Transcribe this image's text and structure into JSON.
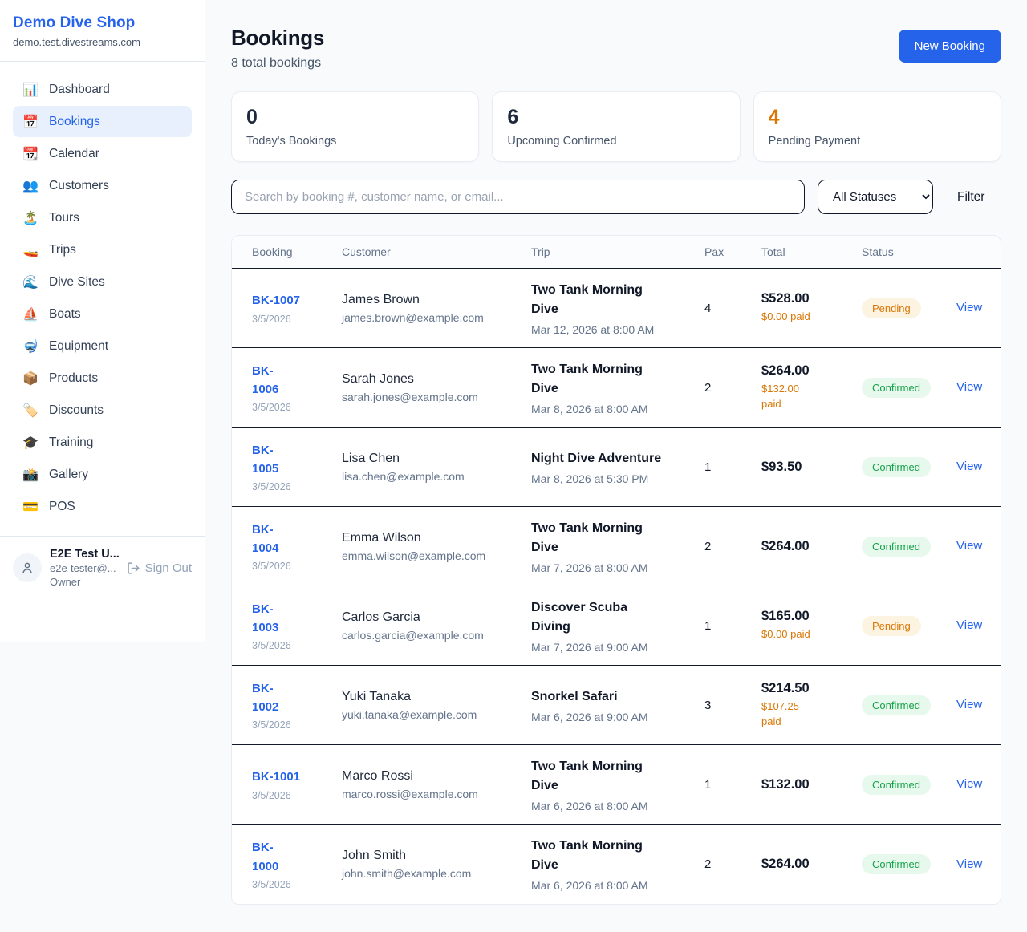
{
  "sidebar": {
    "shop_name": "Demo Dive Shop",
    "shop_domain": "demo.test.divestreams.com",
    "items": [
      {
        "label": "Dashboard",
        "icon": "bar-chart-icon",
        "emoji": "📊",
        "active": false
      },
      {
        "label": "Bookings",
        "icon": "calendar-date-icon",
        "emoji": "📅",
        "active": true
      },
      {
        "label": "Calendar",
        "icon": "tear-off-calendar-icon",
        "emoji": "📆",
        "active": false
      },
      {
        "label": "Customers",
        "icon": "people-icon",
        "emoji": "👥",
        "active": false
      },
      {
        "label": "Tours",
        "icon": "desert-island-icon",
        "emoji": "🏝️",
        "active": false
      },
      {
        "label": "Trips",
        "icon": "speedboat-icon",
        "emoji": "🚤",
        "active": false
      },
      {
        "label": "Dive Sites",
        "icon": "wave-icon",
        "emoji": "🌊",
        "active": false
      },
      {
        "label": "Boats",
        "icon": "sailboat-icon",
        "emoji": "⛵",
        "active": false
      },
      {
        "label": "Equipment",
        "icon": "diving-mask-icon",
        "emoji": "🤿",
        "active": false
      },
      {
        "label": "Products",
        "icon": "package-icon",
        "emoji": "📦",
        "active": false
      },
      {
        "label": "Discounts",
        "icon": "label-tag-icon",
        "emoji": "🏷️",
        "active": false
      },
      {
        "label": "Training",
        "icon": "graduation-cap-icon",
        "emoji": "🎓",
        "active": false
      },
      {
        "label": "Gallery",
        "icon": "camera-flash-icon",
        "emoji": "📸",
        "active": false
      },
      {
        "label": "POS",
        "icon": "credit-card-icon",
        "emoji": "💳",
        "active": false
      }
    ],
    "user": {
      "name": "E2E Test U...",
      "email": "e2e-tester@...",
      "role": "Owner",
      "sign_out_label": "Sign Out"
    }
  },
  "header": {
    "title": "Bookings",
    "subtitle": "8 total bookings",
    "new_booking_label": "New Booking"
  },
  "stats": [
    {
      "value": "0",
      "label": "Today's Bookings",
      "value_color": "#1e293b"
    },
    {
      "value": "6",
      "label": "Upcoming Confirmed",
      "value_color": "#1e293b"
    },
    {
      "value": "4",
      "label": "Pending Payment",
      "value_color": "#d97706"
    }
  ],
  "filters": {
    "search_placeholder": "Search by booking #, customer name, or email...",
    "status_selected": "All Statuses",
    "filter_label": "Filter"
  },
  "table": {
    "columns": [
      "Booking",
      "Customer",
      "Trip",
      "Pax",
      "Total",
      "Status",
      ""
    ],
    "rows": [
      {
        "booking_id": "BK-1007",
        "booking_wrap": false,
        "booking_date": "3/5/2026",
        "customer_name": "James Brown",
        "customer_email": "james.brown@example.com",
        "trip_name": "Two Tank Morning Dive",
        "trip_datetime": "Mar 12, 2026 at 8:00 AM",
        "pax": "4",
        "total": "$528.00",
        "paid": "$0.00 paid",
        "status": "Pending",
        "view_label": "View"
      },
      {
        "booking_id": "BK-1006",
        "booking_wrap": true,
        "booking_date": "3/5/2026",
        "customer_name": "Sarah Jones",
        "customer_email": "sarah.jones@example.com",
        "trip_name": "Two Tank Morning Dive",
        "trip_datetime": "Mar 8, 2026 at 8:00 AM",
        "pax": "2",
        "total": "$264.00",
        "paid": "$132.00 paid",
        "status": "Confirmed",
        "view_label": "View"
      },
      {
        "booking_id": "BK-1005",
        "booking_wrap": true,
        "booking_date": "3/5/2026",
        "customer_name": "Lisa Chen",
        "customer_email": "lisa.chen@example.com",
        "trip_name": "Night Dive Adventure",
        "trip_datetime": "Mar 8, 2026 at 5:30 PM",
        "pax": "1",
        "total": "$93.50",
        "paid": null,
        "status": "Confirmed",
        "view_label": "View"
      },
      {
        "booking_id": "BK-1004",
        "booking_wrap": true,
        "booking_date": "3/5/2026",
        "customer_name": "Emma Wilson",
        "customer_email": "emma.wilson@example.com",
        "trip_name": "Two Tank Morning Dive",
        "trip_datetime": "Mar 7, 2026 at 8:00 AM",
        "pax": "2",
        "total": "$264.00",
        "paid": null,
        "status": "Confirmed",
        "view_label": "View"
      },
      {
        "booking_id": "BK-1003",
        "booking_wrap": true,
        "booking_date": "3/5/2026",
        "customer_name": "Carlos Garcia",
        "customer_email": "carlos.garcia@example.com",
        "trip_name": "Discover Scuba Diving",
        "trip_datetime": "Mar 7, 2026 at 9:00 AM",
        "pax": "1",
        "total": "$165.00",
        "paid": "$0.00 paid",
        "status": "Pending",
        "view_label": "View"
      },
      {
        "booking_id": "BK-1002",
        "booking_wrap": true,
        "booking_date": "3/5/2026",
        "customer_name": "Yuki Tanaka",
        "customer_email": "yuki.tanaka@example.com",
        "trip_name": "Snorkel Safari",
        "trip_datetime": "Mar 6, 2026 at 9:00 AM",
        "pax": "3",
        "total": "$214.50",
        "paid": "$107.25 paid",
        "status": "Confirmed",
        "view_label": "View"
      },
      {
        "booking_id": "BK-1001",
        "booking_wrap": false,
        "booking_date": "3/5/2026",
        "customer_name": "Marco Rossi",
        "customer_email": "marco.rossi@example.com",
        "trip_name": "Two Tank Morning Dive",
        "trip_datetime": "Mar 6, 2026 at 8:00 AM",
        "pax": "1",
        "total": "$132.00",
        "paid": null,
        "status": "Confirmed",
        "view_label": "View"
      },
      {
        "booking_id": "BK-1000",
        "booking_wrap": true,
        "booking_date": "3/5/2026",
        "customer_name": "John Smith",
        "customer_email": "john.smith@example.com",
        "trip_name": "Two Tank Morning Dive",
        "trip_datetime": "Mar 6, 2026 at 8:00 AM",
        "pax": "2",
        "total": "$264.00",
        "paid": null,
        "status": "Confirmed",
        "view_label": "View"
      }
    ]
  },
  "colors": {
    "accent": "#2563eb",
    "pending_text": "#d97706",
    "pending_bg": "#fdf3e1",
    "confirmed_text": "#16a34a",
    "confirmed_bg": "#e7f8ec",
    "page_bg": "#f8fafc",
    "row_divider": "#141c2b"
  }
}
